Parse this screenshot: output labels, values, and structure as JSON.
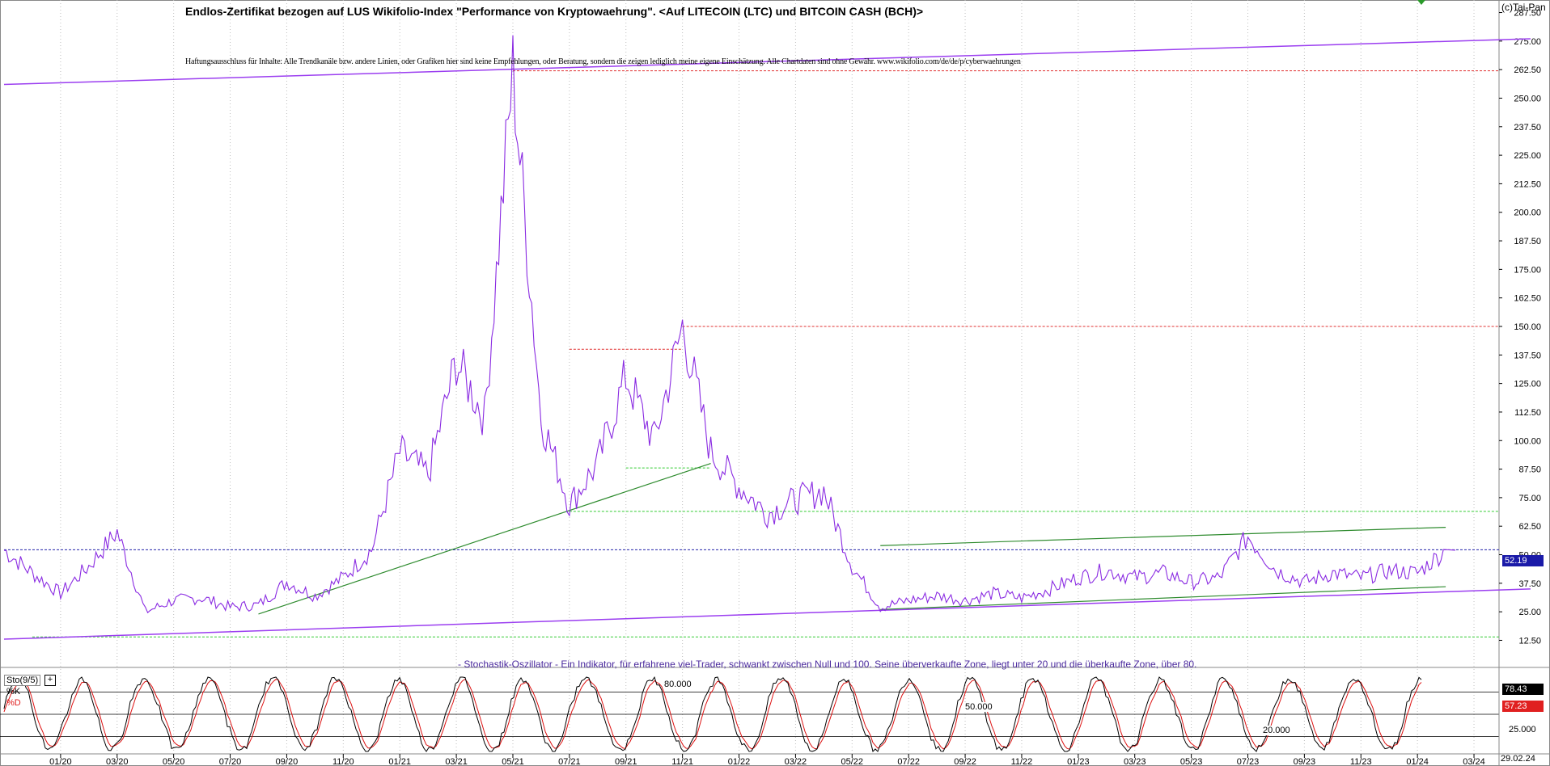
{
  "header": {
    "title": "Endlos-Zertifikat bezogen auf LUS Wikifolio-Index \"Performance von Kryptowaehrung\". <Auf LITECOIN (LTC) und BITCOIN CASH (BCH)>",
    "disclaimer": "Haftungsausschluss für Inhalte: Alle Trendkanäle bzw. andere Linien, oder Grafiken hier sind keine Empfehlungen, oder Beratung, sondern die zeigen lediglich meine eigene Einschätzung. Alle Chartdaten sind ohne Gewähr.  www.wikifolio.com/de/de/p/cyberwaehrungen",
    "copyright": "(c)Tai-Pan"
  },
  "oscillator": {
    "label": "Sto(9/5)",
    "plus": "+",
    "k_label": "%K",
    "d_label": "%D",
    "description": "- Stochastik-Oszillator - Ein Indikator, für erfahrene viel-Trader, schwankt zwischen Null und 100. Seine überverkaufte Zone, liegt unter 20 und die überkaufte Zone, über 80.",
    "k_value": "78.43",
    "d_value": "57.23",
    "axis_label": "25.000",
    "level_80": "80.000",
    "level_50": "50.000",
    "level_20": "20.000",
    "ylim": [
      0,
      100
    ]
  },
  "last_date": "29.02.24",
  "colors": {
    "price_line": "#8a2be2",
    "channel_line": "#9b3ef0",
    "green_line": "#2e8b2e",
    "green_dashed": "#33cc33",
    "red_dashed": "#e03030",
    "blue_dashed": "#2222aa",
    "k_line": "#000000",
    "d_line": "#dd1111",
    "grid": "#bfbfbf"
  },
  "chart_data": {
    "type": "line",
    "title": "Endlos-Zertifikat bezogen auf LUS Wikifolio-Index \"Performance von Kryptowaehrung\". <Auf LITECOIN (LTC) und BITCOIN CASH (BCH)>",
    "ylim": [
      7,
      293
    ],
    "y_ticks": [
      "12.50",
      "25.00",
      "37.50",
      "50.00",
      "62.50",
      "75.00",
      "87.50",
      "100.00",
      "112.50",
      "125.00",
      "137.50",
      "150.00",
      "162.50",
      "175.00",
      "187.50",
      "200.00",
      "212.50",
      "225.00",
      "237.50",
      "250.00",
      "262.50",
      "275.00",
      "287.50"
    ],
    "x_ticks": [
      "01/20",
      "03/20",
      "05/20",
      "07/20",
      "09/20",
      "11/20",
      "01/21",
      "03/21",
      "05/21",
      "07/21",
      "09/21",
      "11/21",
      "01/22",
      "03/22",
      "05/22",
      "07/22",
      "09/22",
      "11/22",
      "01/23",
      "03/23",
      "05/23",
      "07/23",
      "09/23",
      "11/23",
      "01/24",
      "03/24"
    ],
    "grid": "vertical dotted",
    "last_price": "52.19",
    "series": [
      {
        "x": [
          "2019-11",
          "2019-12",
          "2020-01",
          "2020-02",
          "2020-03",
          "2020-04",
          "2020-05",
          "2020-06",
          "2020-07",
          "2020-08",
          "2020-09",
          "2020-10",
          "2020-11",
          "2020-12",
          "2021-01",
          "2021-02",
          "2021-03",
          "2021-04",
          "2021-05",
          "2021-06",
          "2021-07",
          "2021-08",
          "2021-09",
          "2021-10",
          "2021-11",
          "2021-12",
          "2022-01",
          "2022-02",
          "2022-03",
          "2022-04",
          "2022-05",
          "2022-06",
          "2022-07",
          "2022-08",
          "2022-09",
          "2022-10",
          "2022-11",
          "2022-12",
          "2023-01",
          "2023-02",
          "2023-03",
          "2023-04",
          "2023-05",
          "2023-06",
          "2023-07",
          "2023-08",
          "2023-09",
          "2023-10",
          "2023-11",
          "2023-12",
          "2024-01",
          "2024-02"
        ],
        "values": [
          52,
          42,
          33,
          45,
          60,
          25,
          30,
          31,
          27,
          28,
          38,
          32,
          40,
          52,
          95,
          85,
          135,
          110,
          262,
          110,
          72,
          90,
          128,
          100,
          150,
          95,
          80,
          68,
          74,
          78,
          45,
          27,
          30,
          32,
          30,
          33,
          31,
          35,
          40,
          43,
          40,
          42,
          38,
          40,
          58,
          43,
          38,
          42,
          40,
          43,
          42,
          52
        ]
      }
    ],
    "drawings": {
      "upper_channel": {
        "from": [
          "2019-11",
          256
        ],
        "to": [
          "2024-05",
          276
        ]
      },
      "lower_channel": {
        "from": [
          "2019-11",
          13
        ],
        "to": [
          "2024-05",
          35
        ]
      },
      "green_support_1": {
        "from": [
          "2020-08",
          24
        ],
        "to": [
          "2021-12",
          90
        ]
      },
      "green_upper_2": {
        "from": [
          "2022-06",
          54
        ],
        "to": [
          "2024-02",
          62
        ]
      },
      "green_lower_2": {
        "from": [
          "2022-06",
          26
        ],
        "to": [
          "2024-02",
          36
        ]
      },
      "red_dashed_levels": [
        262,
        150,
        140
      ],
      "green_dashed_levels": [
        88,
        69,
        14
      ],
      "blue_dashed_level": 52.19
    }
  }
}
